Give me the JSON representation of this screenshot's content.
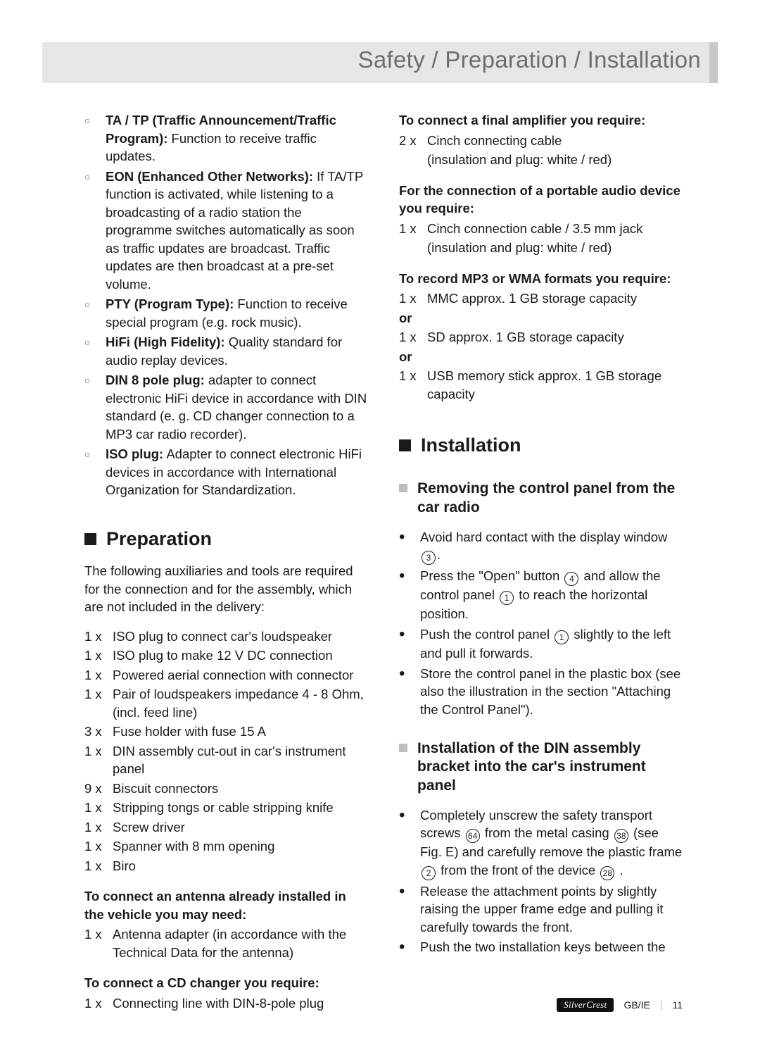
{
  "header": {
    "title": "Safety / Preparation / Installation"
  },
  "defs": [
    {
      "term": "TA / TP (Traffic Announcement/Traffic Program):",
      "text": " Function to receive traffic updates."
    },
    {
      "term": "EON (Enhanced Other Networks):",
      "text": " If TA/TP function is activated, while listening to a broadcasting of a radio station the programme switches automatically as soon as traffic updates are broadcast. Traffic updates are then broadcast at a pre-set volume."
    },
    {
      "term": "PTY (Program Type):",
      "text": " Function to receive special program (e.g. rock music)."
    },
    {
      "term": "HiFi (High Fidelity):",
      "text": " Quality standard for audio replay devices."
    },
    {
      "term": "DIN 8 pole plug:",
      "text": " adapter to connect electronic HiFi device in accordance with DIN standard (e. g. CD changer connection to a MP3 car radio recorder)."
    },
    {
      "term": "ISO plug:",
      "text": " Adapter to connect electronic HiFi devices in accordance with International Organization for Standardization."
    }
  ],
  "prep": {
    "title": "Preparation",
    "intro": "The following auxiliaries and tools are required for the connection and for the assembly, which are not included in the delivery:",
    "items": [
      {
        "q": "1 x",
        "d": "ISO plug to connect car's loudspeaker"
      },
      {
        "q": "1 x",
        "d": "ISO plug to make 12 V DC connection"
      },
      {
        "q": "1 x",
        "d": "Powered aerial connection with connector"
      },
      {
        "q": "1 x",
        "d": "Pair of loudspeakers impedance 4 - 8 Ohm, (incl. feed line)"
      },
      {
        "q": "3 x",
        "d": "Fuse holder with fuse 15 A"
      },
      {
        "q": "1 x",
        "d": "DIN assembly cut-out in car's instrument panel"
      },
      {
        "q": "9 x",
        "d": "Biscuit connectors"
      },
      {
        "q": "1 x",
        "d": "Stripping tongs or cable stripping knife"
      },
      {
        "q": "1 x",
        "d": "Screw driver"
      },
      {
        "q": "1 x",
        "d": "Spanner with 8 mm opening"
      },
      {
        "q": "1 x",
        "d": "Biro"
      }
    ],
    "antenna_head": "To connect an antenna already installed in the vehicle you may need:",
    "antenna_item": {
      "q": "1 x",
      "d": "Antenna adapter (in accordance with the Technical Data for the antenna)"
    },
    "cd_head": "To connect a CD changer you require:",
    "cd_item": {
      "q": "1 x",
      "d": "Connecting line with DIN-8-pole plug"
    }
  },
  "right": {
    "amp_head": "To connect a final amplifier you require:",
    "amp_item": {
      "q": "2 x",
      "d": "Cinch connecting cable",
      "d2": "(insulation and plug: white / red)"
    },
    "portable_head": "For the connection of a portable audio device you require:",
    "portable_item": {
      "q": "1 x",
      "d": "Cinch connection cable / 3.5 mm jack",
      "d2": "(insulation and plug: white / red)"
    },
    "rec_head": "To record MP3 or WMA formats you require:",
    "rec1": {
      "q": "1 x",
      "d": "MMC approx. 1 GB storage capacity"
    },
    "or": "or",
    "rec2": {
      "q": "1 x",
      "d": "SD approx. 1 GB storage capacity"
    },
    "rec3": {
      "q": "1 x",
      "d": "USB memory stick approx. 1 GB storage capacity"
    },
    "install_title": "Installation",
    "remove_title": "Removing the control panel from the car radio",
    "remove_bullets": [
      {
        "pre": "Avoid hard contact with the display window ",
        "c": "3",
        "post": "."
      },
      {
        "pre": "Press the \"Open\" button ",
        "c": "4",
        "mid": " and allow the control panel ",
        "c2": "1",
        "post": " to reach the horizontal position."
      },
      {
        "pre": "Push the control panel ",
        "c": "1",
        "post": " slightly to the left and pull it forwards."
      },
      {
        "pre": "Store the control panel in the plastic box (see also the illustration in the section \"Attaching the Control Panel\").",
        "c": "",
        "post": ""
      }
    ],
    "din_title": "Installation of the DIN assembly bracket into the car's instrument panel",
    "din_bullets": [
      {
        "text_parts": [
          "Completely unscrew the safety transport screws ",
          "64",
          " from the metal casing ",
          "38",
          " (see Fig. E) and carefully remove the plastic frame ",
          "2",
          " from the front of the device ",
          "28",
          " ."
        ]
      },
      {
        "plain": "Release the attachment points by slightly raising the upper frame edge and pulling it carefully towards the front."
      },
      {
        "plain": "Push the two installation keys between the"
      }
    ]
  },
  "footer": {
    "brand": "SilverCrest",
    "region": "GB/IE",
    "page": "11"
  }
}
